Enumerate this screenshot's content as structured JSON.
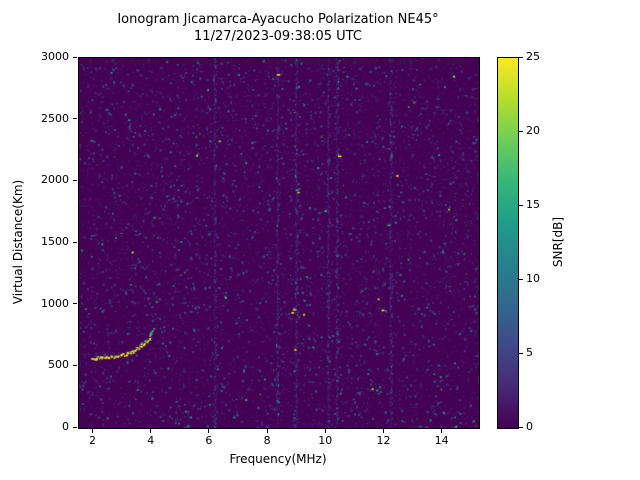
{
  "figure": {
    "title_line1": "Ionogram Jicamarca-Ayacucho Polarization NE45°",
    "title_line2": "11/27/2023-09:38:05 UTC"
  },
  "chart_data": {
    "type": "heatmap",
    "title": "Ionogram Jicamarca-Ayacucho Polarization NE45°\n11/27/2023-09:38:05 UTC",
    "xlabel": "Frequency(MHz)",
    "ylabel": "Virtual Distance(Km)",
    "xlim": [
      1.5,
      15.25
    ],
    "ylim": [
      0,
      3000
    ],
    "x_ticks": [
      2,
      4,
      6,
      8,
      10,
      12,
      14
    ],
    "y_ticks": [
      0,
      500,
      1000,
      1500,
      2000,
      2500,
      3000
    ],
    "grid": false,
    "colorbar": {
      "label": "SNR[dB]",
      "min": 0,
      "max": 25,
      "ticks": [
        0,
        5,
        10,
        15,
        20,
        25
      ],
      "colormap": "viridis",
      "stops": [
        "#440154",
        "#482878",
        "#3e4a89",
        "#31688e",
        "#26828e",
        "#1f9e89",
        "#35b779",
        "#6ece58",
        "#b5de2b",
        "#fde725"
      ]
    },
    "background_value_db": 0,
    "echo_trace": {
      "description": "ionospheric echo trace",
      "snr_db": 25,
      "points": [
        [
          1.9,
          570
        ],
        [
          2.1,
          572
        ],
        [
          2.3,
          575
        ],
        [
          2.5,
          578
        ],
        [
          2.7,
          585
        ],
        [
          2.9,
          592
        ],
        [
          3.05,
          600
        ],
        [
          3.2,
          612
        ],
        [
          3.35,
          628
        ],
        [
          3.5,
          648
        ],
        [
          3.65,
          672
        ],
        [
          3.78,
          700
        ],
        [
          3.88,
          730
        ],
        [
          3.95,
          762
        ],
        [
          4.0,
          795
        ]
      ]
    },
    "secondary_echoes": [
      [
        8.95,
        1935
      ],
      [
        9.0,
        1915
      ],
      [
        8.85,
        965
      ],
      [
        8.8,
        940
      ],
      [
        4.05,
        810
      ],
      [
        8.9,
        640
      ],
      [
        6.3,
        2330
      ],
      [
        10.4,
        2210
      ],
      [
        12.1,
        1650
      ],
      [
        11.9,
        960
      ],
      [
        13.9,
        420
      ],
      [
        8.3,
        2870
      ],
      [
        9.3,
        1230
      ],
      [
        12.4,
        2050
      ]
    ],
    "interference_lines_mhz": [
      6.15,
      8.3,
      8.95,
      10.05,
      10.35,
      12.2
    ],
    "noise": {
      "dot_count": 9000,
      "seed": 42
    }
  }
}
